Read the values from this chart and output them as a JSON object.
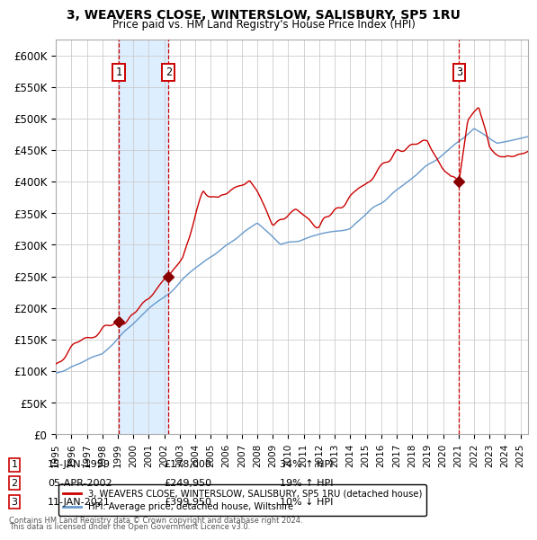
{
  "title1": "3, WEAVERS CLOSE, WINTERSLOW, SALISBURY, SP5 1RU",
  "title2": "Price paid vs. HM Land Registry's House Price Index (HPI)",
  "legend1": "3, WEAVERS CLOSE, WINTERSLOW, SALISBURY, SP5 1RU (detached house)",
  "legend2": "HPI: Average price, detached house, Wiltshire",
  "sale1_date": "15-JAN-1999",
  "sale1_price": 178000,
  "sale1_hpi": "34% ↑ HPI",
  "sale1_x": 1999.04,
  "sale2_date": "05-APR-2002",
  "sale2_price": 249950,
  "sale2_hpi": "19% ↑ HPI",
  "sale2_x": 2002.27,
  "sale3_date": "11-JAN-2021",
  "sale3_price": 399950,
  "sale3_hpi": "10% ↓ HPI",
  "sale3_x": 2021.04,
  "ylabel_ticks": [
    "£0",
    "£50K",
    "£100K",
    "£150K",
    "£200K",
    "£250K",
    "£300K",
    "£350K",
    "£400K",
    "£450K",
    "£500K",
    "£550K",
    "£600K"
  ],
  "ytick_vals": [
    0,
    50000,
    100000,
    150000,
    200000,
    250000,
    300000,
    350000,
    400000,
    450000,
    500000,
    550000,
    600000
  ],
  "ylim": [
    0,
    625000
  ],
  "xlim_start": 1995.0,
  "xlim_end": 2025.5,
  "footnote1": "Contains HM Land Registry data © Crown copyright and database right 2024.",
  "footnote2": "This data is licensed under the Open Government Licence v3.0.",
  "hpi_color": "#6699cc",
  "price_color": "#cc0000",
  "marker_color": "#880000",
  "shade_color": "#ddeeff",
  "vline_color": "#cc0000",
  "grid_color": "#cccccc",
  "bg_color": "#ffffff"
}
